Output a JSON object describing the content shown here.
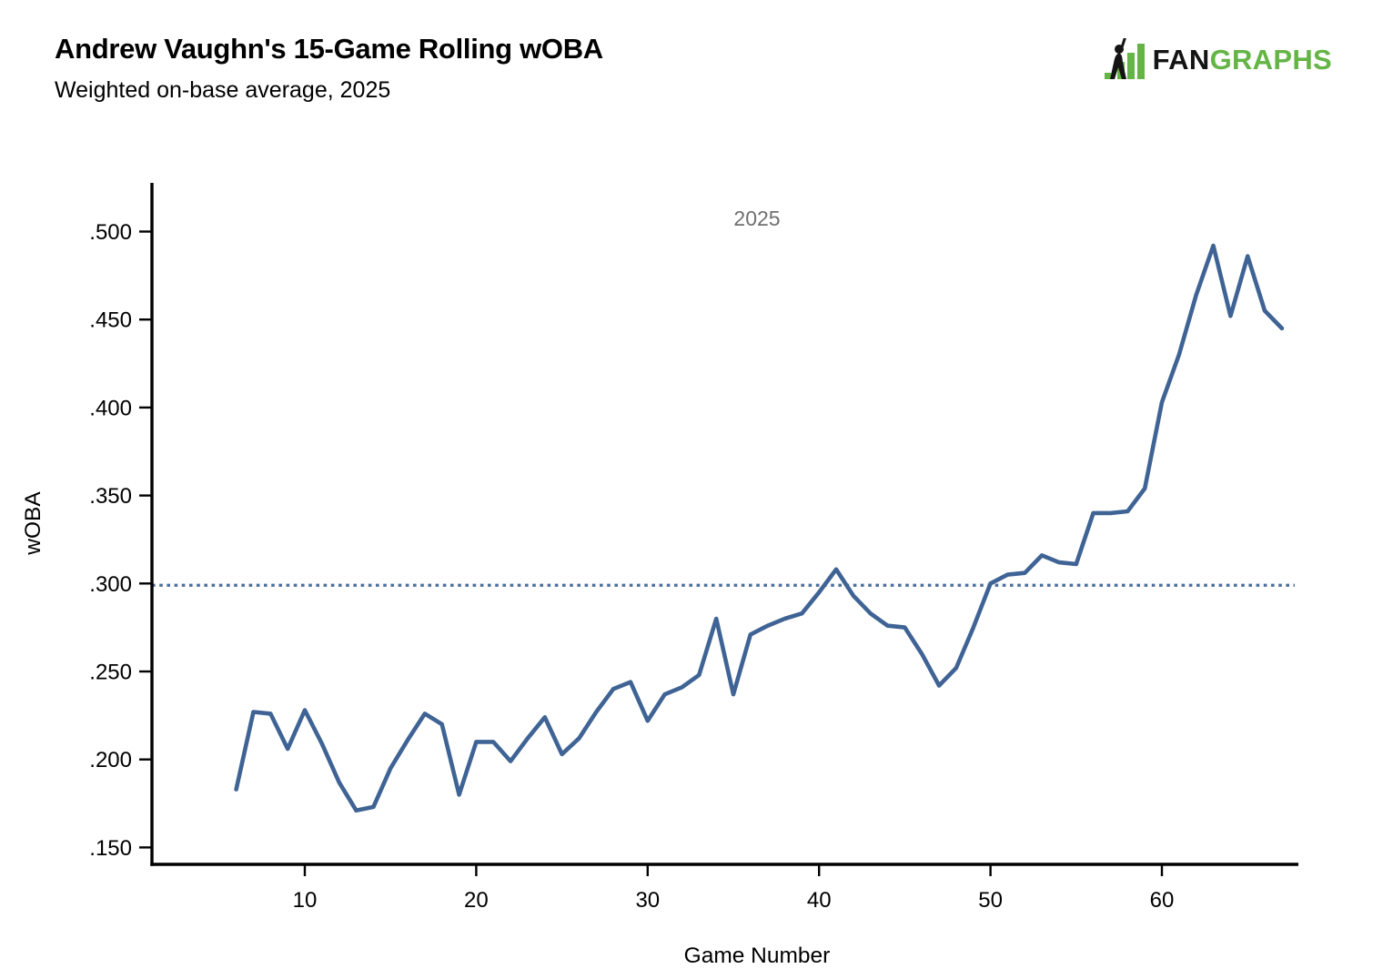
{
  "header": {
    "title": "Andrew Vaughn's 15-Game Rolling wOBA",
    "subtitle": "Weighted on-base average, 2025",
    "logo": {
      "fan": "FAN",
      "graphs": "GRAPHS"
    }
  },
  "colors": {
    "series_line": "#3e6394",
    "reference_line": "#4a6d9c",
    "legend_text": "#6f6f6f",
    "logo_green": "#64b446",
    "logo_black": "#141414",
    "axis": "#000000"
  },
  "chart_data": {
    "type": "line",
    "title": "Andrew Vaughn's 15-Game Rolling wOBA",
    "subtitle": "Weighted on-base average, 2025",
    "xlabel": "Game Number",
    "ylabel": "wOBA",
    "legend": {
      "label": "2025",
      "position": "top-center"
    },
    "grid": false,
    "xlim": [
      1,
      68
    ],
    "ylim": [
      0.14,
      0.528
    ],
    "x_ticks": [
      "10",
      "20",
      "30",
      "40",
      "50",
      "60"
    ],
    "y_ticks": [
      ".150",
      ".200",
      ".250",
      ".300",
      ".350",
      ".400",
      ".450",
      ".500"
    ],
    "reference_line": {
      "value": 0.299,
      "style": "dotted"
    },
    "series": [
      {
        "name": "2025",
        "color": "#3e6394",
        "x": [
          6,
          7,
          8,
          9,
          10,
          11,
          12,
          13,
          14,
          15,
          16,
          17,
          18,
          19,
          20,
          21,
          22,
          23,
          24,
          25,
          26,
          27,
          28,
          29,
          30,
          31,
          32,
          33,
          34,
          35,
          36,
          37,
          38,
          39,
          40,
          41,
          42,
          43,
          44,
          45,
          46,
          47,
          48,
          49,
          50,
          51,
          52,
          53,
          54,
          55,
          56,
          57,
          58,
          59,
          60,
          61,
          62,
          63,
          64,
          65,
          66,
          67
        ],
        "values": [
          0.183,
          0.227,
          0.226,
          0.206,
          0.228,
          0.209,
          0.187,
          0.171,
          0.173,
          0.195,
          0.211,
          0.226,
          0.22,
          0.18,
          0.21,
          0.21,
          0.199,
          0.212,
          0.224,
          0.203,
          0.212,
          0.227,
          0.24,
          0.244,
          0.222,
          0.237,
          0.241,
          0.248,
          0.28,
          0.237,
          0.271,
          0.276,
          0.28,
          0.283,
          0.295,
          0.308,
          0.293,
          0.283,
          0.276,
          0.275,
          0.26,
          0.242,
          0.252,
          0.275,
          0.3,
          0.305,
          0.306,
          0.316,
          0.312,
          0.311,
          0.34,
          0.34,
          0.341,
          0.354,
          0.403,
          0.43,
          0.464,
          0.492,
          0.452,
          0.486,
          0.455,
          0.445
        ]
      }
    ]
  }
}
